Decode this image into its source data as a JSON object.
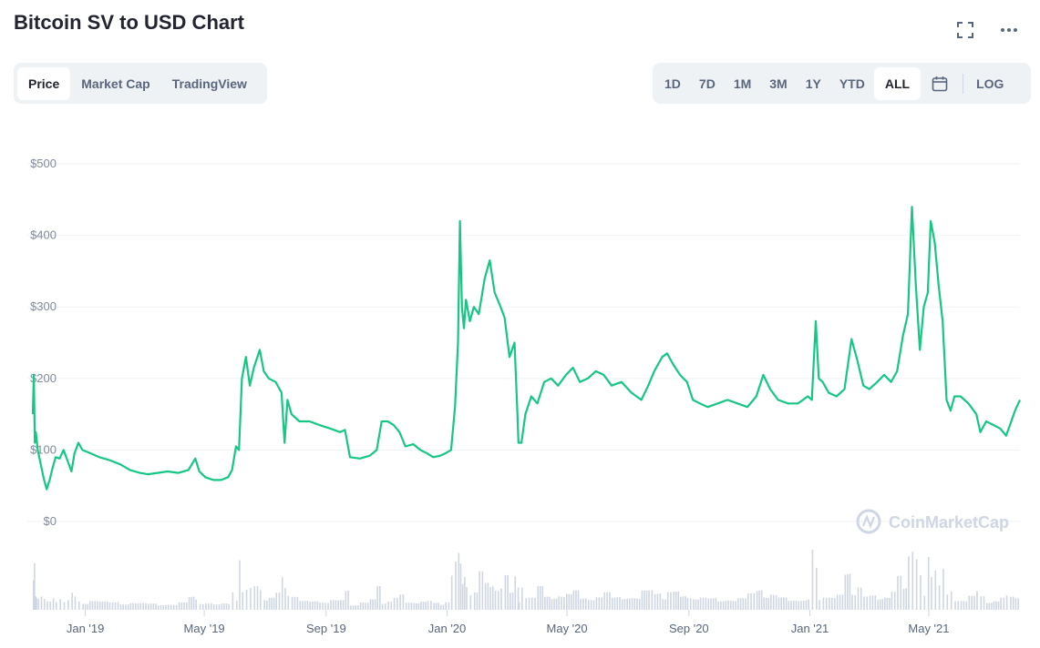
{
  "header": {
    "title": "Bitcoin SV to USD Chart"
  },
  "icons": {
    "fullscreen": "fullscreen-icon",
    "more": "more-icon",
    "calendar": "calendar-icon"
  },
  "left_tabs": [
    {
      "label": "Price",
      "active": true
    },
    {
      "label": "Market Cap",
      "active": false
    },
    {
      "label": "TradingView",
      "active": false
    }
  ],
  "range_tabs": [
    {
      "label": "1D",
      "active": false
    },
    {
      "label": "7D",
      "active": false
    },
    {
      "label": "1M",
      "active": false
    },
    {
      "label": "3M",
      "active": false
    },
    {
      "label": "1Y",
      "active": false
    },
    {
      "label": "YTD",
      "active": false
    },
    {
      "label": "ALL",
      "active": true
    }
  ],
  "log_label": "LOG",
  "colors": {
    "line": "#16c784",
    "volume": "#cfd6e4",
    "grid": "#eff2f5",
    "axis_text": "#808a9d",
    "watermark": "#cfd6e4"
  },
  "watermark": {
    "text": "CoinMarketCap"
  },
  "chart_data": {
    "type": "line",
    "title": "",
    "xlabel": "",
    "ylabel": "",
    "ylim": [
      0,
      500
    ],
    "y_ticks": [
      0,
      100,
      200,
      300,
      400,
      500
    ],
    "y_tick_labels": [
      "$0",
      "$100",
      "$200",
      "$300",
      "$400",
      "$500"
    ],
    "x_ticks": [
      "2019-01-01",
      "2019-05-01",
      "2019-09-01",
      "2020-01-01",
      "2020-05-01",
      "2020-09-01",
      "2021-01-01",
      "2021-05-01"
    ],
    "x_tick_labels": [
      "Jan '19",
      "May '19",
      "Sep '19",
      "Jan '20",
      "May '20",
      "Sep '20",
      "Jan '21",
      "May '21"
    ],
    "xlim": [
      "2018-11-09",
      "2021-08-01"
    ],
    "grid": true,
    "series": [
      {
        "values": [
          [
            "2018-11-09",
            150
          ],
          [
            "2018-11-10",
            205
          ],
          [
            "2018-11-11",
            110
          ],
          [
            "2018-11-12",
            125
          ],
          [
            "2018-11-14",
            100
          ],
          [
            "2018-11-17",
            80
          ],
          [
            "2018-11-20",
            60
          ],
          [
            "2018-11-23",
            45
          ],
          [
            "2018-11-26",
            58
          ],
          [
            "2018-11-29",
            75
          ],
          [
            "2018-12-02",
            90
          ],
          [
            "2018-12-06",
            88
          ],
          [
            "2018-12-10",
            100
          ],
          [
            "2018-12-14",
            85
          ],
          [
            "2018-12-18",
            70
          ],
          [
            "2018-12-21",
            95
          ],
          [
            "2018-12-25",
            110
          ],
          [
            "2018-12-29",
            100
          ],
          [
            "2019-01-05",
            96
          ],
          [
            "2019-01-15",
            90
          ],
          [
            "2019-01-25",
            86
          ],
          [
            "2019-02-05",
            80
          ],
          [
            "2019-02-15",
            72
          ],
          [
            "2019-02-25",
            68
          ],
          [
            "2019-03-05",
            66
          ],
          [
            "2019-03-15",
            68
          ],
          [
            "2019-03-25",
            70
          ],
          [
            "2019-04-05",
            68
          ],
          [
            "2019-04-15",
            72
          ],
          [
            "2019-04-22",
            88
          ],
          [
            "2019-04-26",
            70
          ],
          [
            "2019-05-02",
            62
          ],
          [
            "2019-05-10",
            58
          ],
          [
            "2019-05-18",
            58
          ],
          [
            "2019-05-25",
            62
          ],
          [
            "2019-05-29",
            72
          ],
          [
            "2019-06-02",
            105
          ],
          [
            "2019-06-05",
            100
          ],
          [
            "2019-06-08",
            200
          ],
          [
            "2019-06-12",
            230
          ],
          [
            "2019-06-16",
            190
          ],
          [
            "2019-06-20",
            215
          ],
          [
            "2019-06-26",
            240
          ],
          [
            "2019-06-30",
            210
          ],
          [
            "2019-07-05",
            200
          ],
          [
            "2019-07-12",
            195
          ],
          [
            "2019-07-18",
            180
          ],
          [
            "2019-07-21",
            110
          ],
          [
            "2019-07-24",
            170
          ],
          [
            "2019-07-28",
            150
          ],
          [
            "2019-08-05",
            140
          ],
          [
            "2019-08-15",
            140
          ],
          [
            "2019-08-25",
            135
          ],
          [
            "2019-09-05",
            130
          ],
          [
            "2019-09-15",
            125
          ],
          [
            "2019-09-20",
            128
          ],
          [
            "2019-09-25",
            90
          ],
          [
            "2019-10-05",
            88
          ],
          [
            "2019-10-15",
            92
          ],
          [
            "2019-10-22",
            100
          ],
          [
            "2019-10-27",
            140
          ],
          [
            "2019-11-02",
            140
          ],
          [
            "2019-11-08",
            135
          ],
          [
            "2019-11-14",
            125
          ],
          [
            "2019-11-20",
            105
          ],
          [
            "2019-11-28",
            108
          ],
          [
            "2019-12-05",
            100
          ],
          [
            "2019-12-12",
            95
          ],
          [
            "2019-12-18",
            90
          ],
          [
            "2019-12-25",
            92
          ],
          [
            "2019-12-30",
            95
          ],
          [
            "2020-01-05",
            100
          ],
          [
            "2020-01-09",
            160
          ],
          [
            "2020-01-12",
            250
          ],
          [
            "2020-01-14",
            420
          ],
          [
            "2020-01-16",
            300
          ],
          [
            "2020-01-18",
            270
          ],
          [
            "2020-01-20",
            310
          ],
          [
            "2020-01-24",
            280
          ],
          [
            "2020-01-28",
            300
          ],
          [
            "2020-02-02",
            290
          ],
          [
            "2020-02-08",
            340
          ],
          [
            "2020-02-13",
            365
          ],
          [
            "2020-02-18",
            320
          ],
          [
            "2020-02-24",
            300
          ],
          [
            "2020-02-28",
            285
          ],
          [
            "2020-03-04",
            230
          ],
          [
            "2020-03-09",
            250
          ],
          [
            "2020-03-12",
            150
          ],
          [
            "2020-03-13",
            110
          ],
          [
            "2020-03-16",
            110
          ],
          [
            "2020-03-20",
            150
          ],
          [
            "2020-03-26",
            175
          ],
          [
            "2020-04-01",
            165
          ],
          [
            "2020-04-08",
            195
          ],
          [
            "2020-04-15",
            200
          ],
          [
            "2020-04-22",
            190
          ],
          [
            "2020-04-30",
            205
          ],
          [
            "2020-05-07",
            215
          ],
          [
            "2020-05-14",
            195
          ],
          [
            "2020-05-22",
            200
          ],
          [
            "2020-05-30",
            210
          ],
          [
            "2020-06-07",
            205
          ],
          [
            "2020-06-15",
            190
          ],
          [
            "2020-06-25",
            195
          ],
          [
            "2020-07-05",
            180
          ],
          [
            "2020-07-15",
            170
          ],
          [
            "2020-07-22",
            190
          ],
          [
            "2020-07-28",
            210
          ],
          [
            "2020-08-05",
            230
          ],
          [
            "2020-08-10",
            235
          ],
          [
            "2020-08-16",
            220
          ],
          [
            "2020-08-23",
            205
          ],
          [
            "2020-08-30",
            195
          ],
          [
            "2020-09-05",
            170
          ],
          [
            "2020-09-12",
            165
          ],
          [
            "2020-09-20",
            160
          ],
          [
            "2020-09-30",
            165
          ],
          [
            "2020-10-10",
            170
          ],
          [
            "2020-10-20",
            165
          ],
          [
            "2020-10-30",
            160
          ],
          [
            "2020-11-08",
            175
          ],
          [
            "2020-11-15",
            205
          ],
          [
            "2020-11-22",
            185
          ],
          [
            "2020-11-30",
            170
          ],
          [
            "2020-12-10",
            165
          ],
          [
            "2020-12-20",
            165
          ],
          [
            "2020-12-30",
            175
          ],
          [
            "2021-01-03",
            170
          ],
          [
            "2021-01-07",
            280
          ],
          [
            "2021-01-10",
            200
          ],
          [
            "2021-01-14",
            195
          ],
          [
            "2021-01-20",
            180
          ],
          [
            "2021-01-28",
            175
          ],
          [
            "2021-02-05",
            185
          ],
          [
            "2021-02-12",
            255
          ],
          [
            "2021-02-18",
            225
          ],
          [
            "2021-02-24",
            190
          ],
          [
            "2021-03-02",
            185
          ],
          [
            "2021-03-10",
            195
          ],
          [
            "2021-03-17",
            205
          ],
          [
            "2021-03-24",
            195
          ],
          [
            "2021-03-30",
            210
          ],
          [
            "2021-04-05",
            260
          ],
          [
            "2021-04-10",
            290
          ],
          [
            "2021-04-14",
            440
          ],
          [
            "2021-04-18",
            330
          ],
          [
            "2021-04-22",
            240
          ],
          [
            "2021-04-26",
            300
          ],
          [
            "2021-04-30",
            320
          ],
          [
            "2021-05-03",
            420
          ],
          [
            "2021-05-07",
            390
          ],
          [
            "2021-05-11",
            330
          ],
          [
            "2021-05-15",
            280
          ],
          [
            "2021-05-19",
            170
          ],
          [
            "2021-05-23",
            155
          ],
          [
            "2021-05-27",
            175
          ],
          [
            "2021-06-02",
            175
          ],
          [
            "2021-06-10",
            165
          ],
          [
            "2021-06-18",
            150
          ],
          [
            "2021-06-22",
            125
          ],
          [
            "2021-06-28",
            140
          ],
          [
            "2021-07-05",
            135
          ],
          [
            "2021-07-12",
            130
          ],
          [
            "2021-07-18",
            120
          ],
          [
            "2021-07-22",
            135
          ],
          [
            "2021-07-27",
            155
          ],
          [
            "2021-08-01",
            170
          ]
        ]
      }
    ]
  }
}
